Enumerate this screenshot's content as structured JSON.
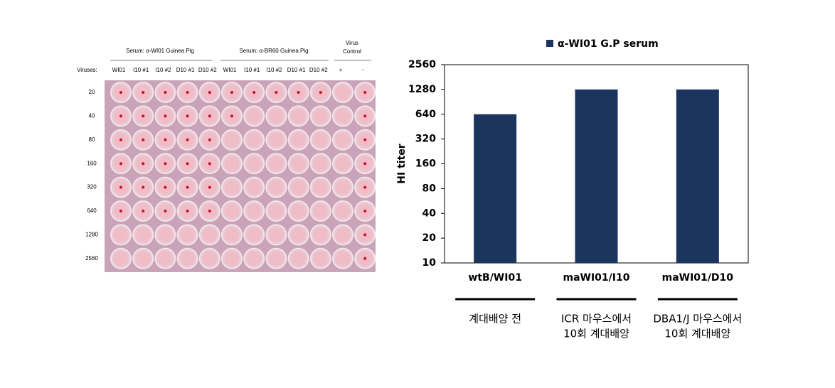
{
  "plate": {
    "groups": [
      "Serum: α-WI01 Guinea Pig",
      "Serum: α-BR60 Guinea Pig"
    ],
    "virus_control": [
      "Virus",
      "Control"
    ],
    "viruses_label": "Viruses:",
    "columns": [
      "WI01",
      "I10 #1",
      "I10 #2",
      "D10 #1",
      "D10 #2",
      "WI01",
      "I10 #1",
      "I10 #2",
      "D10 #1",
      "D10 #2",
      "+",
      "-"
    ],
    "rows": [
      "20",
      "40",
      "80",
      "160",
      "320",
      "640",
      "1280",
      "2560"
    ]
  },
  "chart_data": {
    "type": "bar",
    "categories": [
      "wtB/WI01",
      "maWI01/I10",
      "maWI01/D10"
    ],
    "sublabels": [
      [
        "계대배양 전"
      ],
      [
        "ICR 마우스에서",
        "10회 계대배양"
      ],
      [
        "DBA1/J 마우스에서",
        "10회 계대배양"
      ]
    ],
    "series": [
      {
        "name": "α-WI01 G.P serum",
        "color": "#1c355e",
        "values": [
          640,
          1280,
          1280
        ]
      }
    ],
    "ylabel": "HI titer",
    "log_scale": true,
    "log_base": 2,
    "ylim": [
      10,
      2560
    ],
    "yticks": [
      10,
      20,
      40,
      80,
      160,
      320,
      640,
      1280,
      2560
    ],
    "legend": "top"
  }
}
